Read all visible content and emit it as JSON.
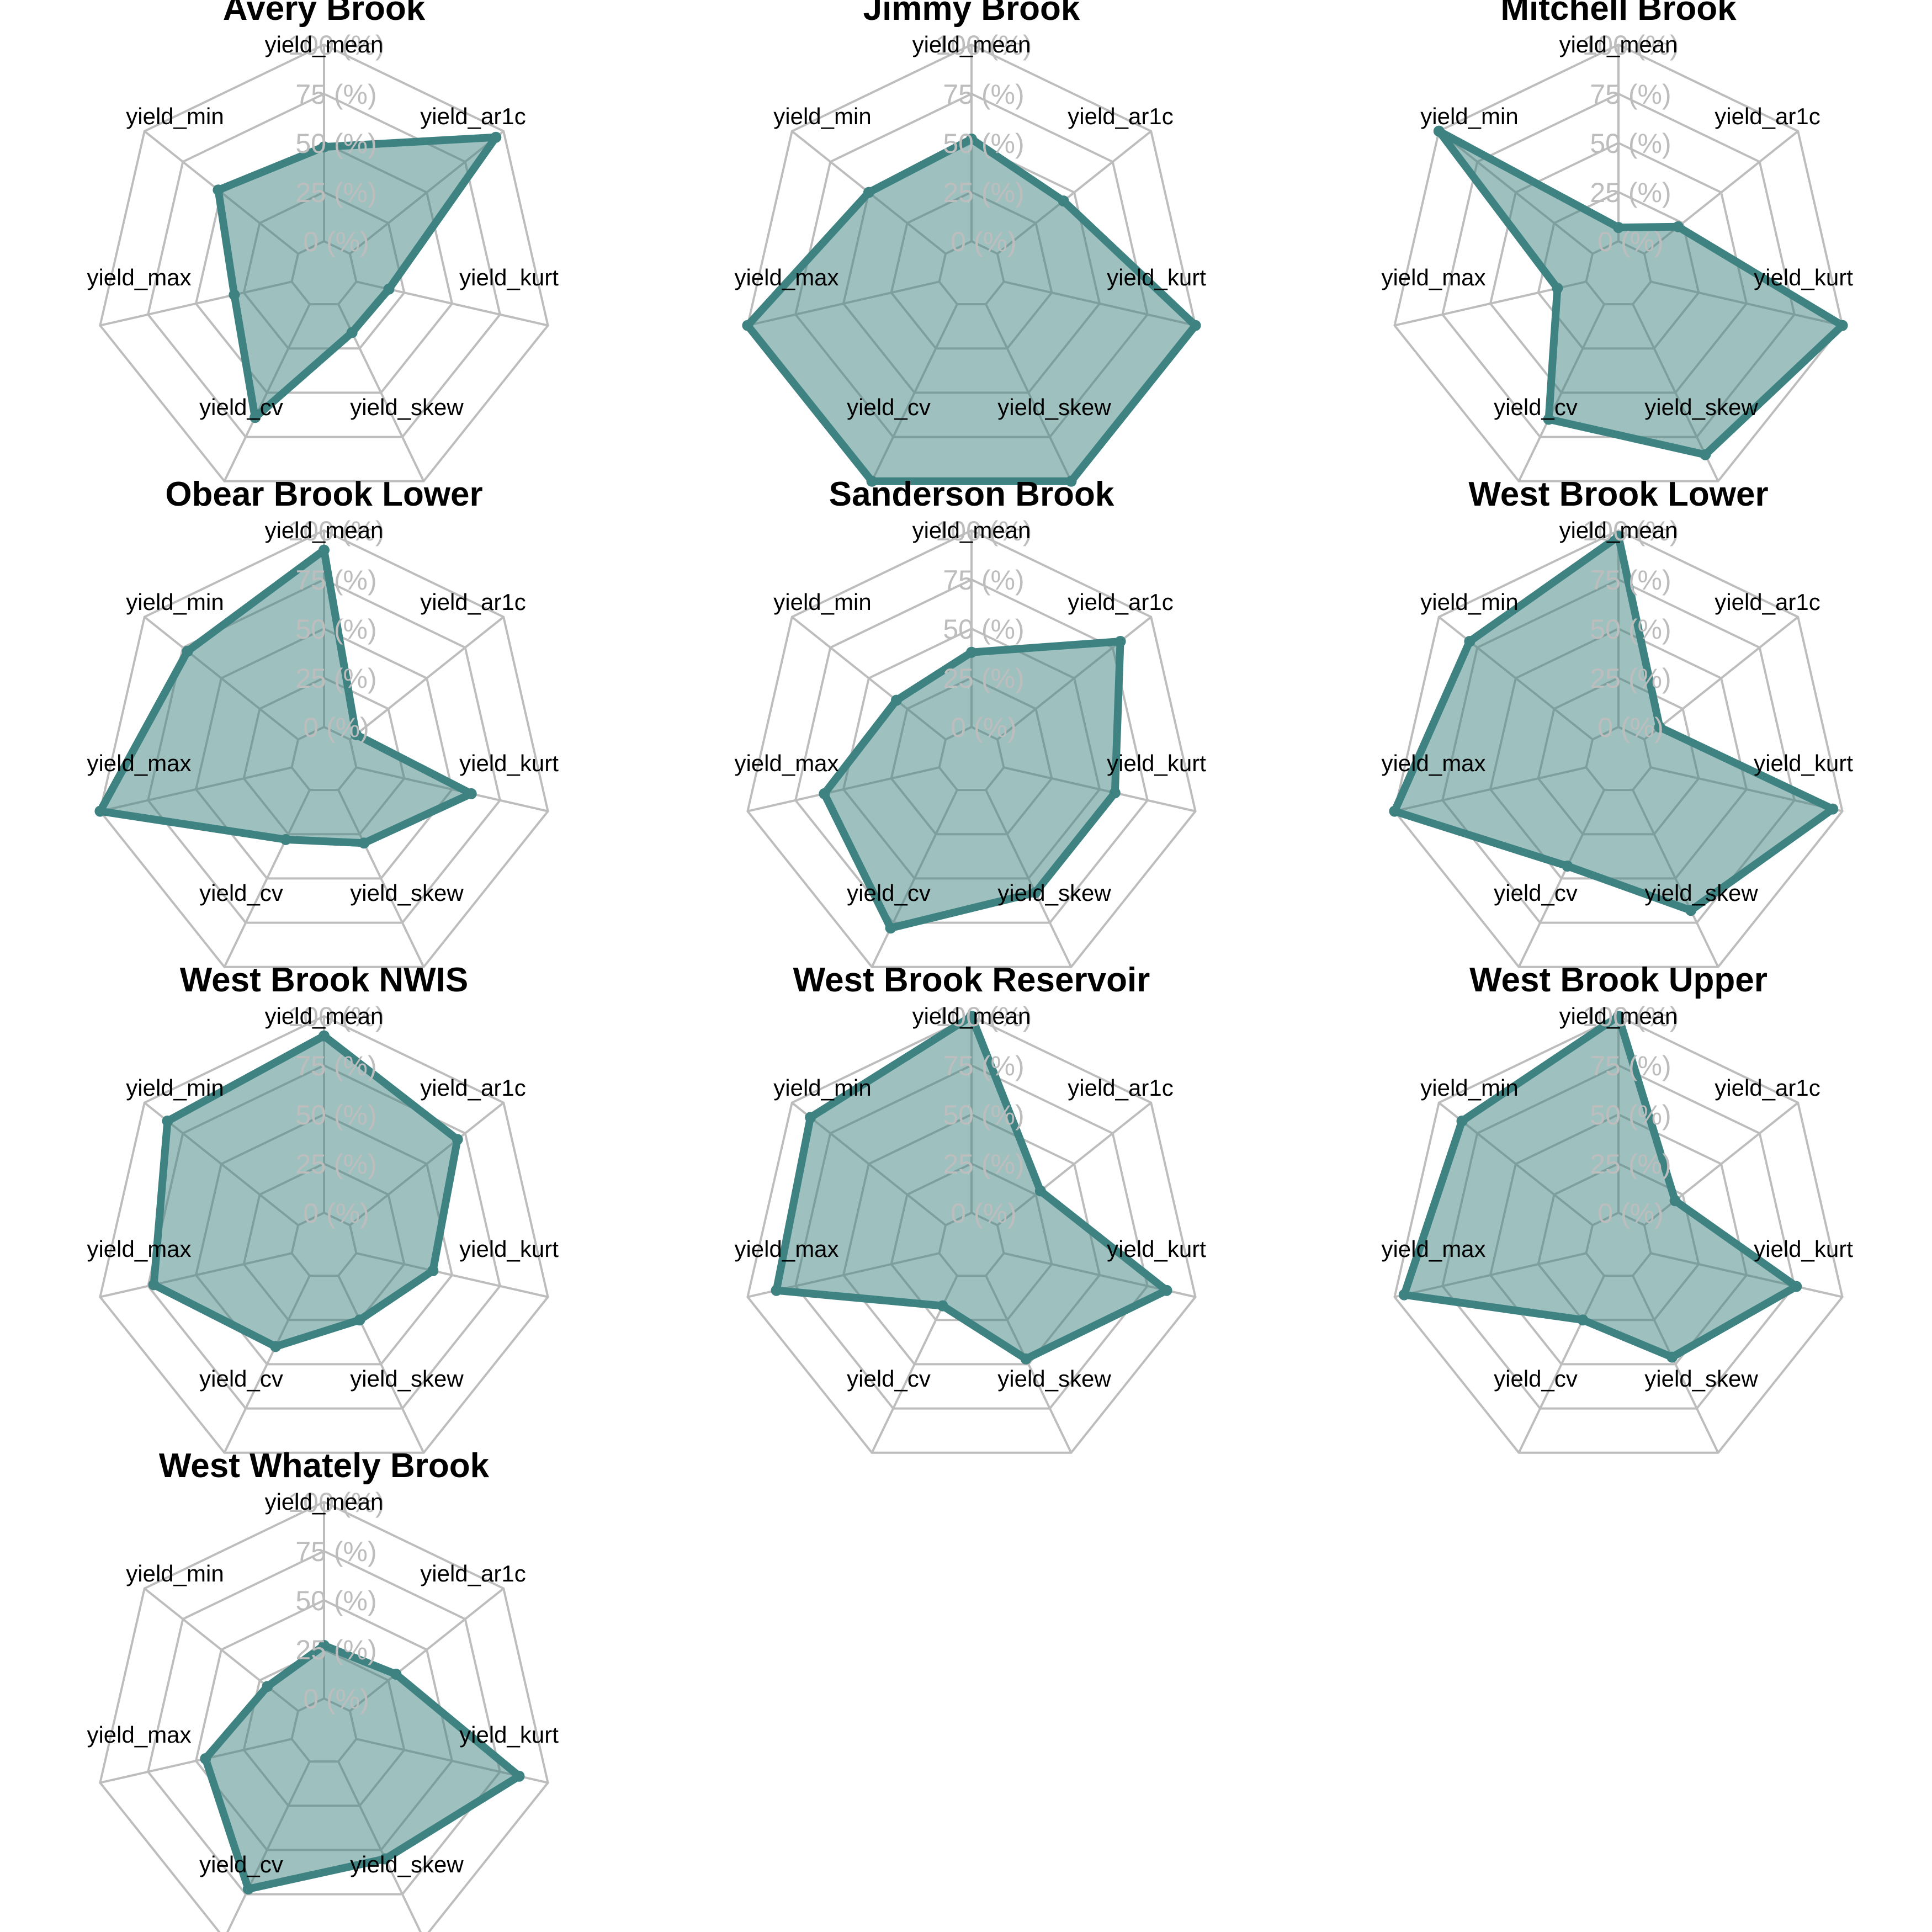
{
  "chart_data": {
    "type": "radar",
    "axes": [
      "yield_mean",
      "yield_ar1c",
      "yield_kurt",
      "yield_skew",
      "yield_cv",
      "yield_max",
      "yield_min"
    ],
    "ring_labels": [
      "0 (%)",
      "25 (%)",
      "50 (%)",
      "75 (%)",
      "100 (%)"
    ],
    "range": [
      0,
      100
    ],
    "colors": {
      "series": "#3e8382",
      "fill": "#3e8382",
      "fill_opacity": 0.5,
      "grid": "#bdbdbd",
      "ring_label": "#bdbdbd"
    },
    "panels": [
      {
        "title": "Avery Brook",
        "values": [
          48,
          95,
          17,
          16,
          64,
          30,
          52
        ]
      },
      {
        "title": "Jimmy Brook",
        "values": [
          52,
          43,
          100,
          100,
          100,
          100,
          50
        ]
      },
      {
        "title": "Mitchell Brook",
        "values": [
          7,
          22,
          100,
          85,
          65,
          15,
          100
        ]
      },
      {
        "title": "Obear Brook Lower",
        "values": [
          90,
          4,
          60,
          30,
          28,
          100,
          72
        ]
      },
      {
        "title": "Sanderson Brook",
        "values": [
          38,
          80,
          58,
          58,
          78,
          60,
          32
        ]
      },
      {
        "title": "West Brook Lower",
        "values": [
          97,
          10,
          95,
          68,
          43,
          100,
          80
        ]
      },
      {
        "title": "West Brook NWIS",
        "values": [
          90,
          70,
          40,
          25,
          40,
          72,
          85
        ]
      },
      {
        "title": "West Brook Reservoir",
        "values": [
          100,
          28,
          85,
          47,
          17,
          85,
          88
        ]
      },
      {
        "title": "West Brook Upper",
        "values": [
          100,
          20,
          76,
          46,
          25,
          95,
          85
        ]
      },
      {
        "title": "West Whately Brook",
        "values": [
          27,
          30,
          85,
          55,
          72,
          45,
          20
        ]
      }
    ]
  }
}
